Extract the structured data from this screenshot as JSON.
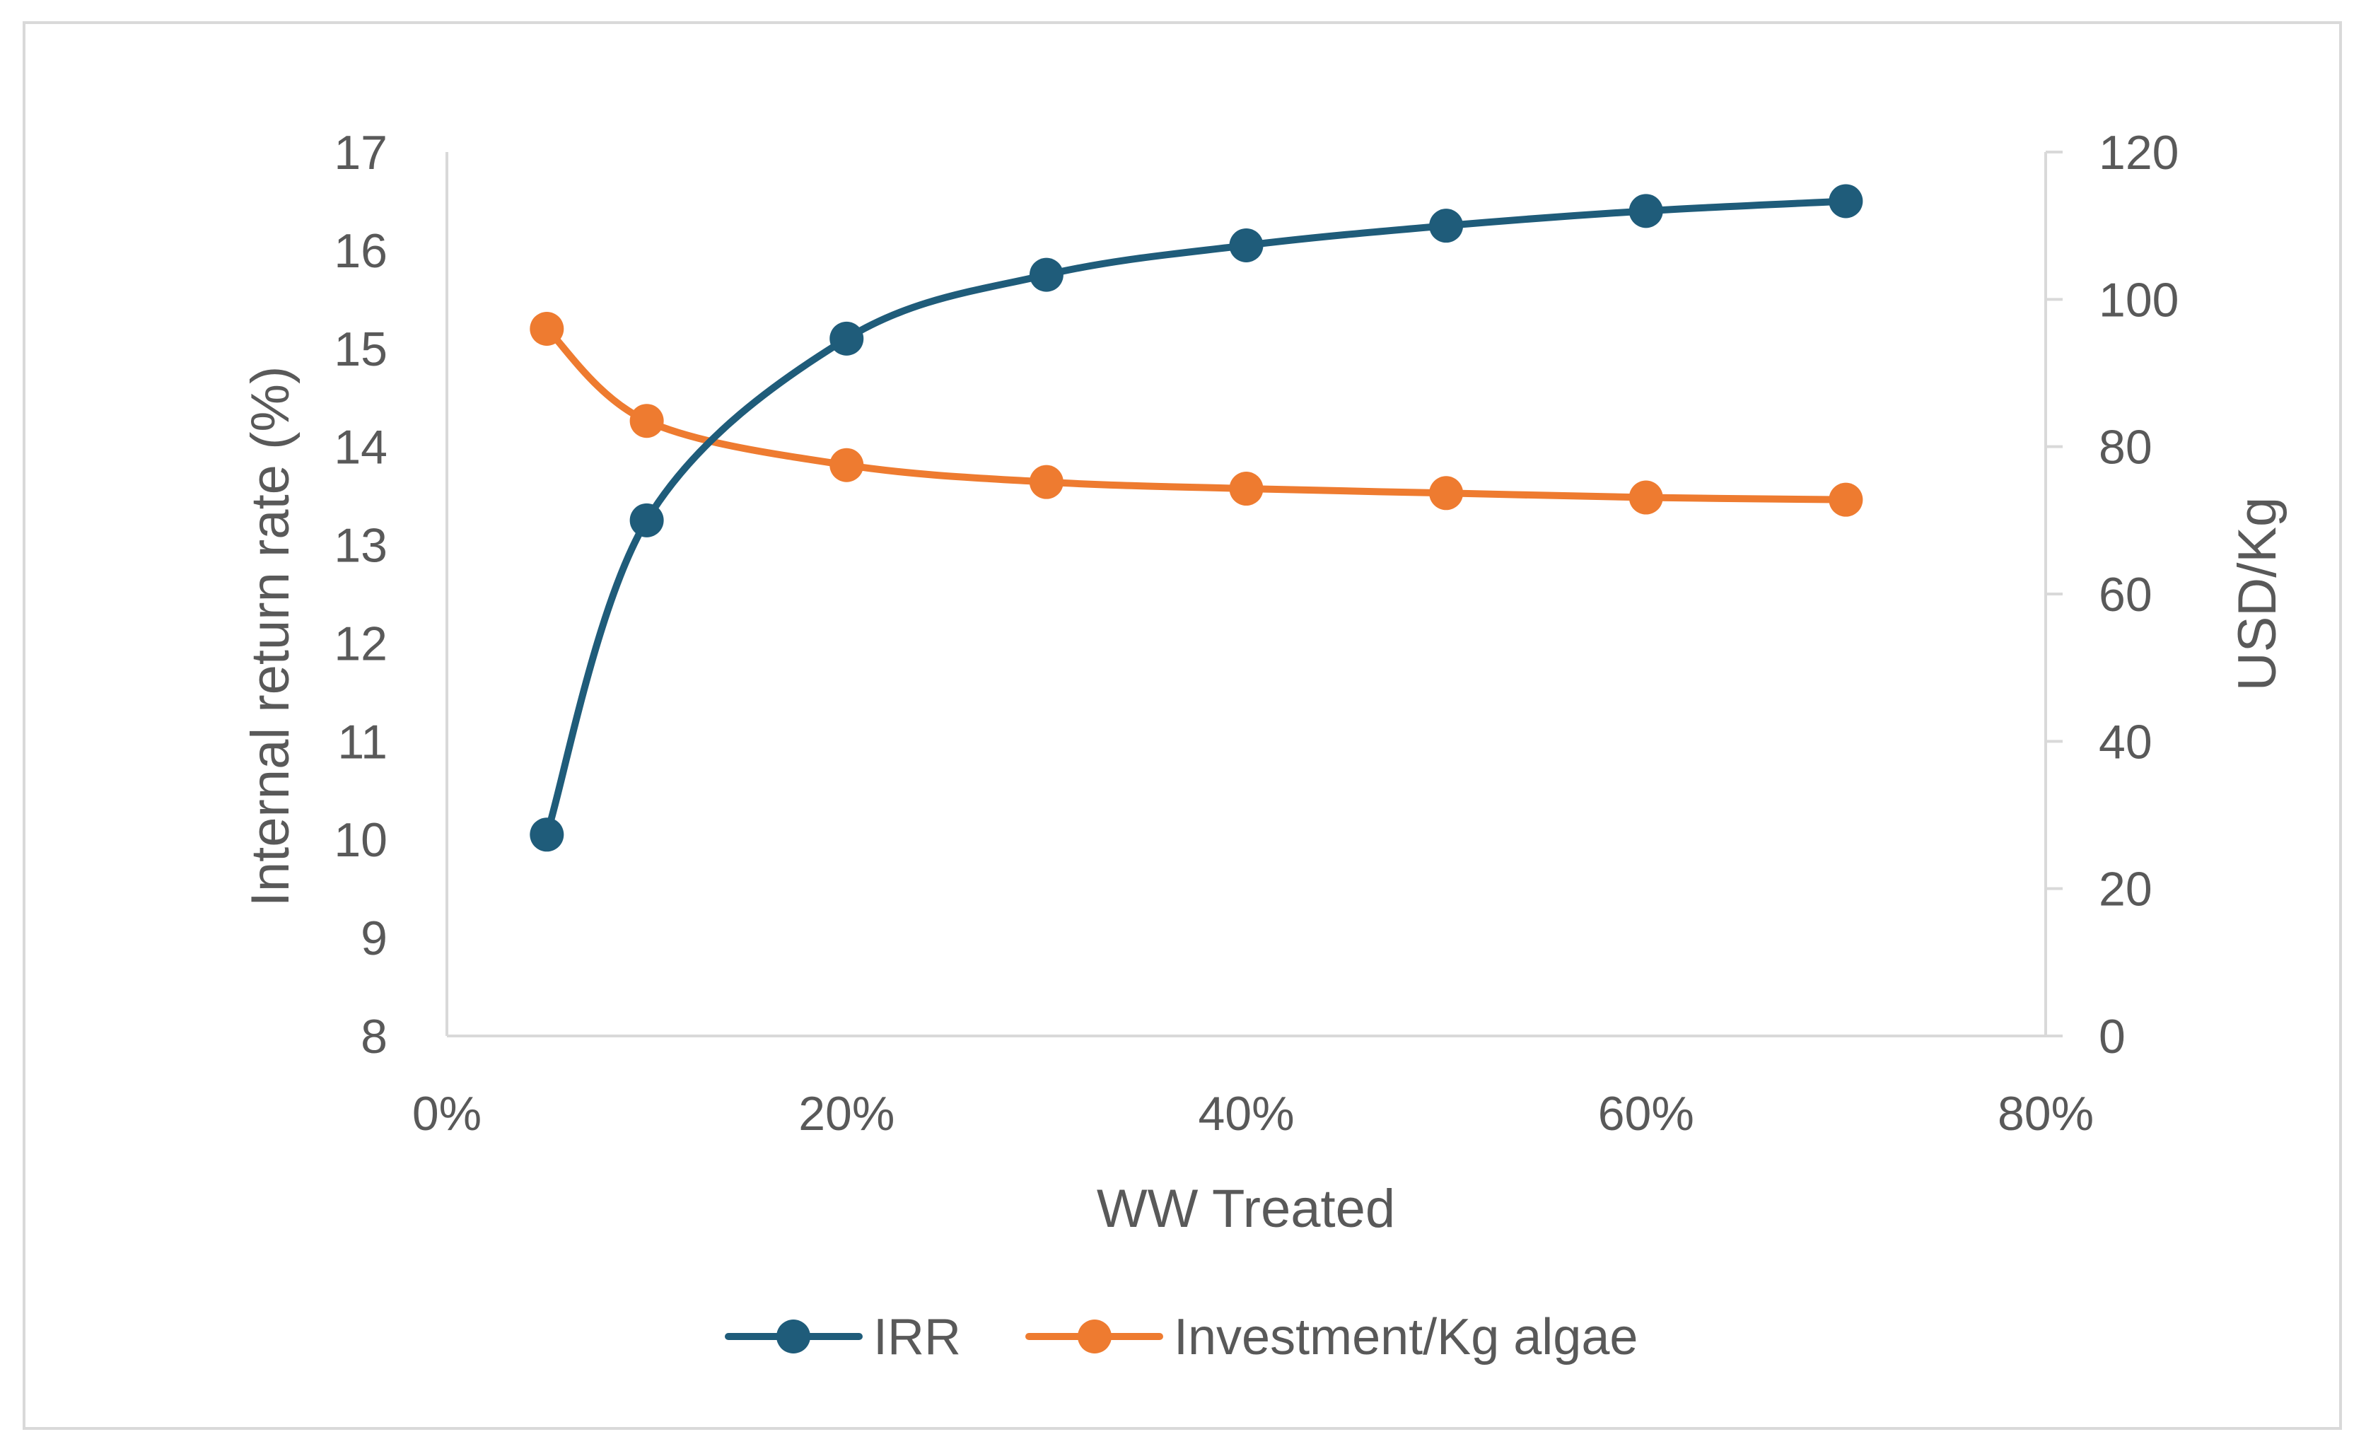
{
  "chart_data": {
    "type": "line",
    "title": "",
    "xlabel": "WW Treated",
    "ylabel": "Internal return rate (%)",
    "y2label": "USD/Kg",
    "x": [
      0.05,
      0.1,
      0.2,
      0.3,
      0.4,
      0.5,
      0.6,
      0.7
    ],
    "xlim": [
      0,
      0.8
    ],
    "x_ticks": [
      0,
      0.2,
      0.4,
      0.6,
      0.8
    ],
    "x_tick_labels": [
      "0%",
      "20%",
      "40%",
      "60%",
      "80%"
    ],
    "ylim": [
      8,
      17
    ],
    "y_ticks": [
      8,
      9,
      10,
      11,
      12,
      13,
      14,
      15,
      16,
      17
    ],
    "y_tick_labels": [
      "8",
      "9",
      "10",
      "11",
      "12",
      "13",
      "14",
      "15",
      "16",
      "17"
    ],
    "y2lim": [
      0,
      120
    ],
    "y2_ticks": [
      0,
      20,
      40,
      60,
      80,
      100,
      120
    ],
    "y2_tick_labels": [
      "0",
      "20",
      "40",
      "60",
      "80",
      "100",
      "120"
    ],
    "grid": false,
    "legend_position": "bottom",
    "series": [
      {
        "name": "IRR",
        "axis": "left",
        "color": "#1f5c7a",
        "values": [
          10.05,
          13.25,
          15.1,
          15.75,
          16.05,
          16.25,
          16.4,
          16.5
        ]
      },
      {
        "name": "Investment/Kg algae",
        "axis": "right",
        "color": "#ee7b30",
        "values": [
          96.0,
          83.5,
          77.5,
          75.2,
          74.3,
          73.7,
          73.1,
          72.8
        ]
      }
    ]
  }
}
